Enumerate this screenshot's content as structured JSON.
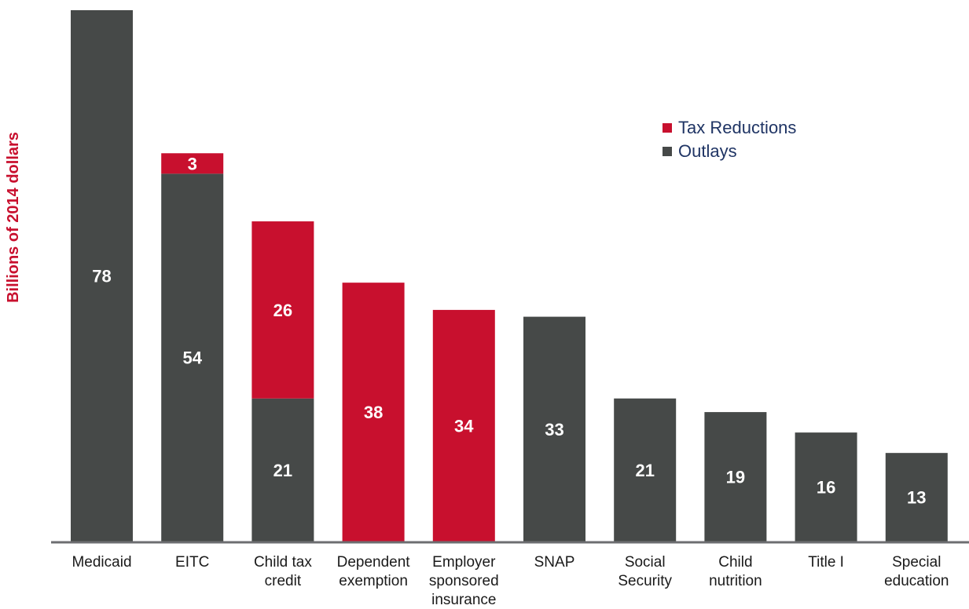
{
  "colors": {
    "outlays": "#464948",
    "tax_reductions": "#c8102e",
    "axis": "#6d6e71",
    "ylabel": "#c8102e",
    "legend_text": "#1f3464"
  },
  "chart_data": {
    "type": "bar",
    "stacked": true,
    "title": "",
    "xlabel": "",
    "ylabel": "Billions of 2014 dollars",
    "ylim": [
      0,
      78
    ],
    "grid": false,
    "legend_position": "top-right",
    "categories": [
      [
        "Medicaid"
      ],
      [
        "EITC"
      ],
      [
        "Child tax",
        "credit"
      ],
      [
        "Dependent",
        "exemption"
      ],
      [
        "Employer",
        "sponsored",
        "insurance"
      ],
      [
        "SNAP"
      ],
      [
        "Social",
        "Security"
      ],
      [
        "Child",
        "nutrition"
      ],
      [
        "Title I"
      ],
      [
        "Special",
        "education"
      ]
    ],
    "series": [
      {
        "name": "Outlays",
        "key": "outlays",
        "values": [
          78,
          54,
          21,
          0,
          0,
          33,
          21,
          19,
          16,
          13
        ]
      },
      {
        "name": "Tax Reductions",
        "key": "tax_reductions",
        "values": [
          0,
          3,
          26,
          38,
          34,
          0,
          0,
          0,
          0,
          0
        ]
      }
    ],
    "legend": [
      {
        "name": "Tax Reductions",
        "key": "tax_reductions"
      },
      {
        "name": "Outlays",
        "key": "outlays"
      }
    ]
  }
}
